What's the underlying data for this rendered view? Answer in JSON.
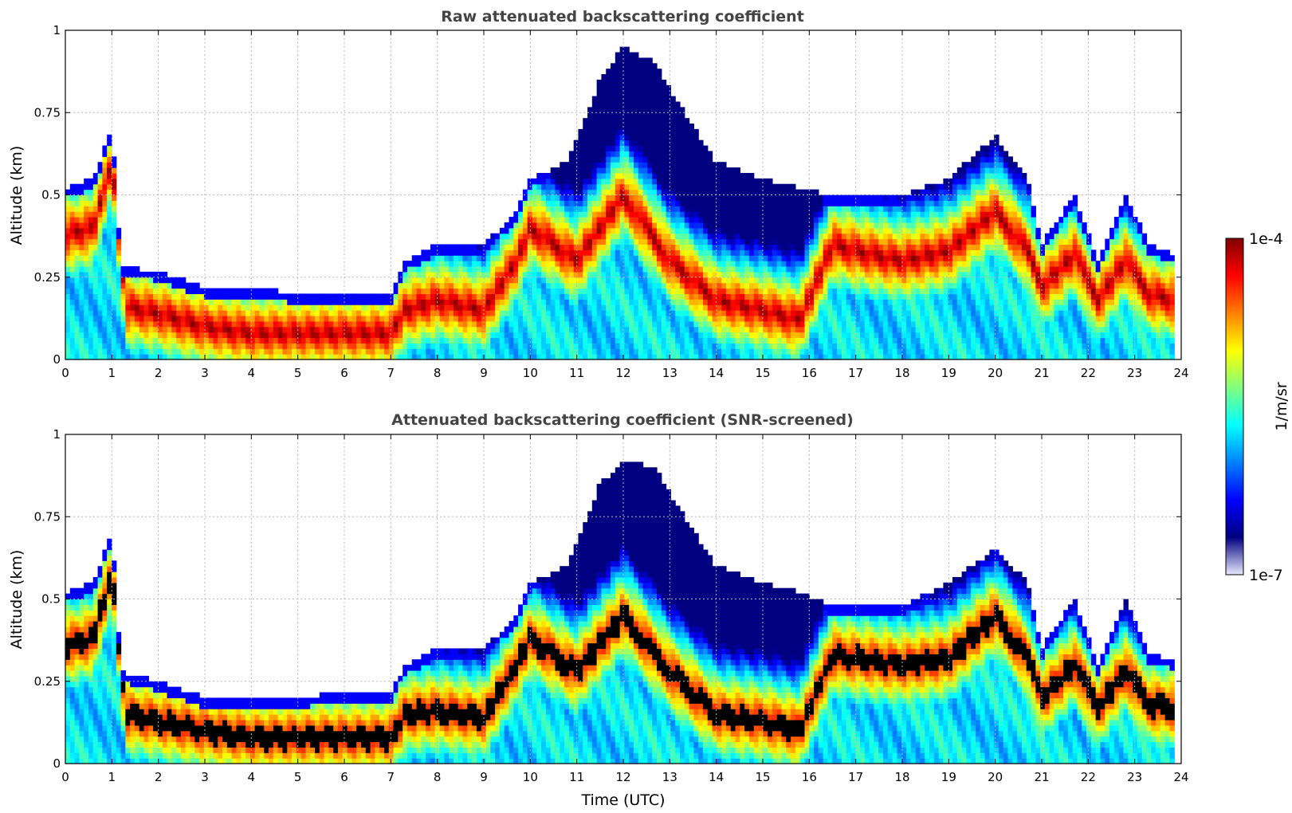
{
  "chart_data": [
    {
      "type": "heatmap",
      "title": "Raw attenuated backscattering coefficient",
      "xlabel": "",
      "ylabel": "Altitude (km)",
      "xlim": [
        0,
        24
      ],
      "ylim": [
        0,
        1
      ],
      "xticks": [
        "0",
        "1",
        "2",
        "3",
        "4",
        "5",
        "6",
        "7",
        "8",
        "9",
        "10",
        "11",
        "12",
        "13",
        "14",
        "15",
        "16",
        "17",
        "18",
        "19",
        "20",
        "21",
        "22",
        "23",
        "24"
      ],
      "yticks": [
        "0",
        "0.25",
        "0.5",
        "0.75",
        "1"
      ],
      "grid": true,
      "colorscale": "jet",
      "layer_top_km": [
        [
          0,
          0.52
        ],
        [
          0.6,
          0.55
        ],
        [
          1,
          0.7
        ],
        [
          1.2,
          0.28
        ],
        [
          2,
          0.27
        ],
        [
          3,
          0.22
        ],
        [
          4,
          0.22
        ],
        [
          5,
          0.2
        ],
        [
          6,
          0.2
        ],
        [
          7,
          0.2
        ],
        [
          7.3,
          0.3
        ],
        [
          8,
          0.35
        ],
        [
          9,
          0.35
        ],
        [
          9.7,
          0.45
        ],
        [
          10,
          0.55
        ],
        [
          10.8,
          0.6
        ],
        [
          11.5,
          0.85
        ],
        [
          12,
          0.95
        ],
        [
          12.7,
          0.9
        ],
        [
          13.3,
          0.75
        ],
        [
          14,
          0.6
        ],
        [
          15,
          0.55
        ],
        [
          15.8,
          0.52
        ],
        [
          16.5,
          0.5
        ],
        [
          17,
          0.5
        ],
        [
          18,
          0.5
        ],
        [
          19,
          0.55
        ],
        [
          20,
          0.68
        ],
        [
          20.7,
          0.55
        ],
        [
          21,
          0.35
        ],
        [
          21.7,
          0.5
        ],
        [
          22.2,
          0.3
        ],
        [
          22.8,
          0.5
        ],
        [
          23.3,
          0.35
        ],
        [
          23.85,
          0.32
        ]
      ],
      "layer_core_km": [
        [
          0,
          0.38
        ],
        [
          0.6,
          0.4
        ],
        [
          1,
          0.6
        ],
        [
          1.3,
          0.16
        ],
        [
          2,
          0.14
        ],
        [
          3,
          0.1
        ],
        [
          4,
          0.08
        ],
        [
          5,
          0.08
        ],
        [
          6,
          0.08
        ],
        [
          7,
          0.08
        ],
        [
          7.3,
          0.15
        ],
        [
          8,
          0.18
        ],
        [
          9,
          0.15
        ],
        [
          9.7,
          0.3
        ],
        [
          10,
          0.4
        ],
        [
          11,
          0.3
        ],
        [
          12,
          0.5
        ],
        [
          13,
          0.3
        ],
        [
          14,
          0.18
        ],
        [
          15,
          0.15
        ],
        [
          15.8,
          0.12
        ],
        [
          16.5,
          0.35
        ],
        [
          17,
          0.33
        ],
        [
          18,
          0.3
        ],
        [
          19,
          0.33
        ],
        [
          20,
          0.45
        ],
        [
          20.7,
          0.33
        ],
        [
          21,
          0.22
        ],
        [
          21.7,
          0.32
        ],
        [
          22.2,
          0.18
        ],
        [
          22.8,
          0.3
        ],
        [
          23.3,
          0.2
        ],
        [
          23.85,
          0.18
        ]
      ]
    },
    {
      "type": "heatmap",
      "title": "Attenuated backscattering coefficient (SNR-screened)",
      "xlabel": "Time (UTC)",
      "ylabel": "Altitude (km)",
      "xlim": [
        0,
        24
      ],
      "ylim": [
        0,
        1
      ],
      "xticks": [
        "0",
        "1",
        "2",
        "3",
        "4",
        "5",
        "6",
        "7",
        "8",
        "9",
        "10",
        "11",
        "12",
        "13",
        "14",
        "15",
        "16",
        "17",
        "18",
        "19",
        "20",
        "21",
        "22",
        "23",
        "24"
      ],
      "yticks": [
        "0",
        "0.25",
        "0.5",
        "0.75",
        "1"
      ],
      "grid": true,
      "colorscale": "jet",
      "saturation_color": "#000000",
      "layer_top_km": [
        [
          0,
          0.52
        ],
        [
          0.6,
          0.55
        ],
        [
          1,
          0.7
        ],
        [
          1.2,
          0.28
        ],
        [
          2,
          0.25
        ],
        [
          3,
          0.2
        ],
        [
          4,
          0.2
        ],
        [
          5,
          0.2
        ],
        [
          6,
          0.22
        ],
        [
          7,
          0.22
        ],
        [
          7.3,
          0.3
        ],
        [
          8,
          0.35
        ],
        [
          9,
          0.35
        ],
        [
          9.7,
          0.45
        ],
        [
          10,
          0.55
        ],
        [
          10.8,
          0.6
        ],
        [
          11.5,
          0.85
        ],
        [
          12,
          0.92
        ],
        [
          12.7,
          0.9
        ],
        [
          13.3,
          0.75
        ],
        [
          14,
          0.6
        ],
        [
          15,
          0.55
        ],
        [
          15.8,
          0.52
        ],
        [
          16.5,
          0.48
        ],
        [
          17,
          0.48
        ],
        [
          18,
          0.48
        ],
        [
          19,
          0.55
        ],
        [
          20,
          0.65
        ],
        [
          20.7,
          0.55
        ],
        [
          21,
          0.35
        ],
        [
          21.7,
          0.5
        ],
        [
          22.2,
          0.3
        ],
        [
          22.8,
          0.5
        ],
        [
          23.3,
          0.33
        ],
        [
          23.85,
          0.32
        ]
      ],
      "layer_core_km": [
        [
          0,
          0.36
        ],
        [
          0.6,
          0.38
        ],
        [
          1,
          0.58
        ],
        [
          1.3,
          0.15
        ],
        [
          2,
          0.13
        ],
        [
          3,
          0.1
        ],
        [
          4,
          0.08
        ],
        [
          5,
          0.08
        ],
        [
          6,
          0.08
        ],
        [
          7,
          0.08
        ],
        [
          7.3,
          0.15
        ],
        [
          8,
          0.16
        ],
        [
          9,
          0.14
        ],
        [
          9.7,
          0.3
        ],
        [
          10,
          0.38
        ],
        [
          11,
          0.28
        ],
        [
          12,
          0.45
        ],
        [
          13,
          0.28
        ],
        [
          14,
          0.15
        ],
        [
          15,
          0.13
        ],
        [
          15.8,
          0.1
        ],
        [
          16.5,
          0.33
        ],
        [
          17,
          0.32
        ],
        [
          18,
          0.3
        ],
        [
          19,
          0.32
        ],
        [
          20,
          0.45
        ],
        [
          20.7,
          0.32
        ],
        [
          21,
          0.2
        ],
        [
          21.7,
          0.3
        ],
        [
          22.2,
          0.17
        ],
        [
          22.8,
          0.28
        ],
        [
          23.3,
          0.18
        ],
        [
          23.85,
          0.17
        ]
      ]
    }
  ],
  "colorbar": {
    "max_label": "1e-4",
    "min_label": "1e-7",
    "unit_label": "1/m/sr",
    "stops": [
      "#000080",
      "#0000ff",
      "#0080ff",
      "#00ffff",
      "#80ff80",
      "#ffff00",
      "#ff8000",
      "#ff0000",
      "#800000"
    ],
    "low_fade": "#e8e8ff"
  }
}
